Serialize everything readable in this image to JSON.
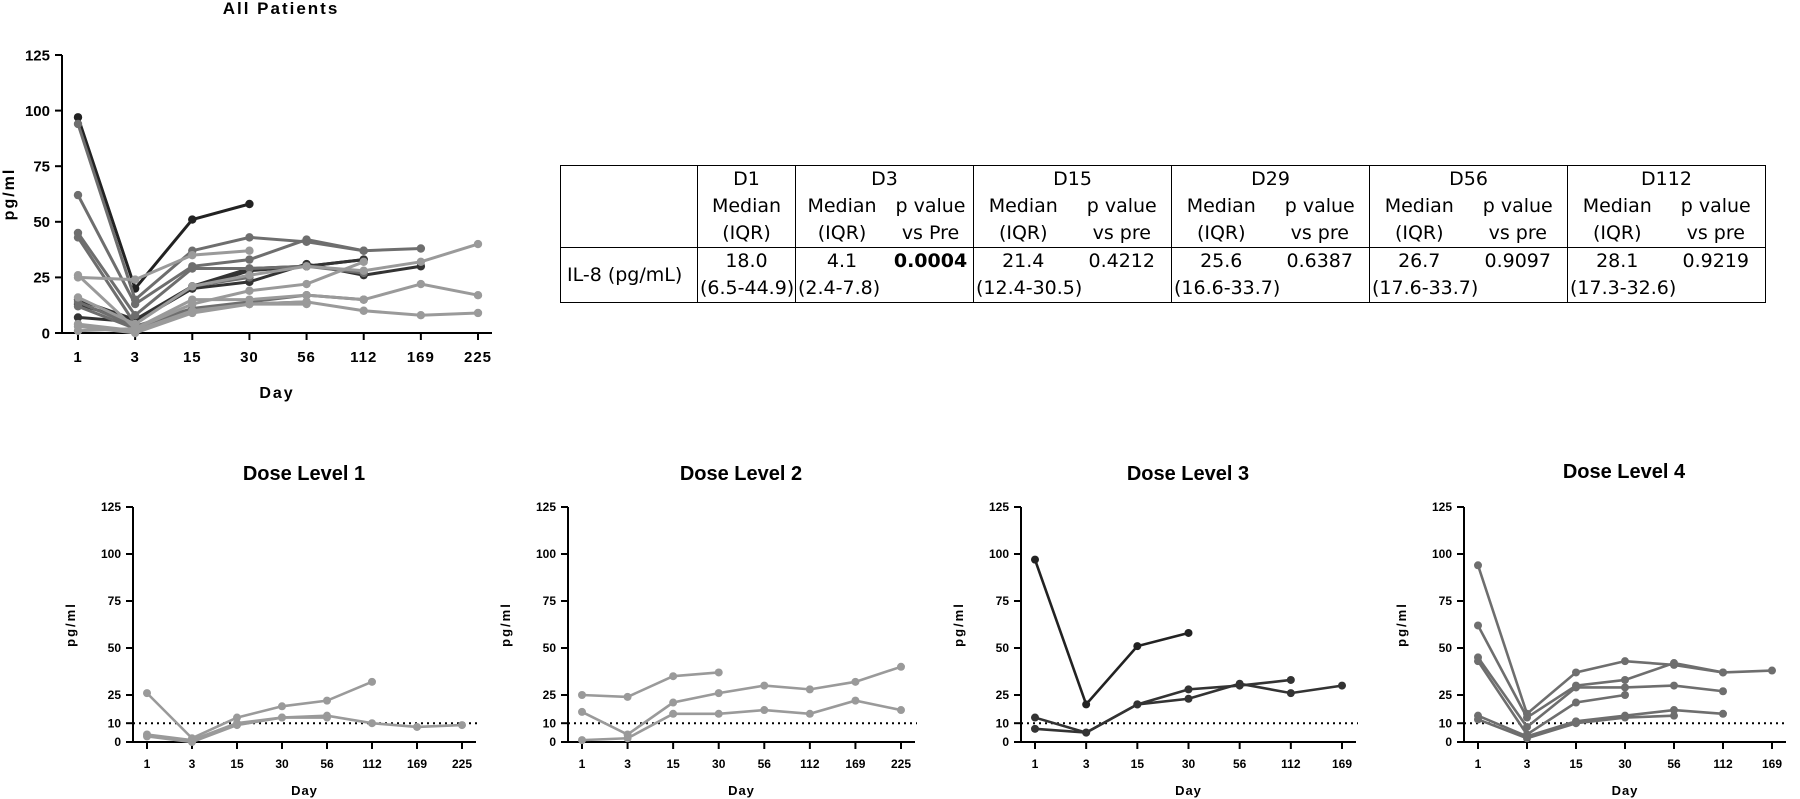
{
  "colors": {
    "light": "#9a9a9a",
    "mid": "#6e6e6e",
    "dark": "#333333",
    "darkest": "#222222"
  },
  "table": {
    "header_top": [
      "D1",
      "D3",
      "D15",
      "D29",
      "D56",
      "D112"
    ],
    "median_label": "Median",
    "iqr_label": "(IQR)",
    "pvalue_label": "p value",
    "vs_Pre": "vs Pre",
    "vs_pre": "vs pre",
    "row_label": "IL-8 (pg/mL)",
    "d1": {
      "median": "18.0",
      "iqr": "(6.5-44.9)"
    },
    "d3": {
      "median": "4.1",
      "iqr": "(2.4-7.8)",
      "p": "0.0004"
    },
    "d15": {
      "median": "21.4",
      "iqr": "(12.4-30.5)",
      "p": "0.4212"
    },
    "d29": {
      "median": "25.6",
      "iqr": "(16.6-33.7)",
      "p": "0.6387"
    },
    "d56": {
      "median": "26.7",
      "iqr": "(17.6-33.7)",
      "p": "0.9097"
    },
    "d112": {
      "median": "28.1",
      "iqr": "(17.3-32.6)",
      "p": "0.9219"
    }
  },
  "chart_data": [
    {
      "type": "line",
      "title": "All Patients",
      "xlabel": "Day",
      "ylabel": "pg/ml",
      "x": [
        "1",
        "3",
        "15",
        "30",
        "56",
        "112",
        "169",
        "225"
      ],
      "ylim": [
        0,
        125
      ],
      "yticks": [
        "0",
        "25",
        "50",
        "75",
        "100",
        "125"
      ],
      "reference_line": null,
      "series": [
        {
          "color": "darkest",
          "values": [
            97,
            20,
            51,
            58,
            null,
            null,
            null,
            null
          ]
        },
        {
          "color": "dark",
          "values": [
            13,
            5,
            20,
            23,
            31,
            26,
            30,
            null
          ]
        },
        {
          "color": "dark",
          "values": [
            7,
            5,
            20,
            28,
            30,
            33,
            null,
            null
          ]
        },
        {
          "color": "dark",
          "values": [
            15,
            6,
            21,
            29,
            30,
            33,
            null,
            null
          ]
        },
        {
          "color": "mid",
          "values": [
            94,
            15,
            37,
            43,
            41,
            37,
            38,
            null
          ]
        },
        {
          "color": "mid",
          "values": [
            62,
            13,
            30,
            33,
            42,
            37,
            null,
            null
          ]
        },
        {
          "color": "mid",
          "values": [
            45,
            8,
            29,
            29,
            30,
            27,
            null,
            null
          ]
        },
        {
          "color": "mid",
          "values": [
            43,
            4,
            21,
            25,
            null,
            null,
            null,
            null
          ]
        },
        {
          "color": "mid",
          "values": [
            14,
            3,
            11,
            14,
            17,
            15,
            null,
            null
          ]
        },
        {
          "color": "mid",
          "values": [
            12,
            2,
            10,
            13,
            14,
            null,
            null,
            null
          ]
        },
        {
          "color": "light",
          "values": [
            25,
            24,
            35,
            37,
            null,
            null,
            null,
            null
          ]
        },
        {
          "color": "light",
          "values": [
            16,
            4,
            21,
            26,
            30,
            28,
            32,
            40
          ]
        },
        {
          "color": "light",
          "values": [
            1,
            2,
            15,
            15,
            17,
            15,
            22,
            17
          ]
        },
        {
          "color": "light",
          "values": [
            26,
            2,
            13,
            19,
            22,
            32,
            null,
            null
          ]
        },
        {
          "color": "light",
          "values": [
            4,
            1,
            10,
            13,
            14,
            10,
            8,
            9
          ]
        },
        {
          "color": "light",
          "values": [
            3,
            0,
            9,
            13,
            13,
            null,
            null,
            null
          ]
        }
      ]
    },
    {
      "type": "line",
      "title": "Dose Level 1",
      "xlabel": "Day",
      "ylabel": "pg/ml",
      "x": [
        "1",
        "3",
        "15",
        "30",
        "56",
        "112",
        "169",
        "225"
      ],
      "ylim": [
        0,
        125
      ],
      "yticks": [
        "0",
        "10",
        "25",
        "50",
        "75",
        "100",
        "125"
      ],
      "reference_line": 10,
      "series": [
        {
          "color": "light",
          "values": [
            26,
            2,
            13,
            19,
            22,
            32,
            null,
            null
          ]
        },
        {
          "color": "light",
          "values": [
            4,
            1,
            10,
            13,
            14,
            10,
            8,
            9
          ]
        },
        {
          "color": "light",
          "values": [
            3,
            0,
            9,
            13,
            13,
            null,
            null,
            null
          ]
        }
      ]
    },
    {
      "type": "line",
      "title": "Dose Level 2",
      "xlabel": "Day",
      "ylabel": "pg/ml",
      "x": [
        "1",
        "3",
        "15",
        "30",
        "56",
        "112",
        "169",
        "225"
      ],
      "ylim": [
        0,
        125
      ],
      "yticks": [
        "0",
        "10",
        "25",
        "50",
        "75",
        "100",
        "125"
      ],
      "reference_line": 10,
      "series": [
        {
          "color": "light",
          "values": [
            25,
            24,
            35,
            37,
            null,
            null,
            null,
            null
          ]
        },
        {
          "color": "light",
          "values": [
            16,
            4,
            21,
            26,
            30,
            28,
            32,
            40
          ]
        },
        {
          "color": "light",
          "values": [
            1,
            2,
            15,
            15,
            17,
            15,
            22,
            17
          ]
        }
      ]
    },
    {
      "type": "line",
      "title": "Dose Level 3",
      "xlabel": "Day",
      "ylabel": "pg/ml",
      "x": [
        "1",
        "3",
        "15",
        "30",
        "56",
        "112",
        "169"
      ],
      "ylim": [
        0,
        125
      ],
      "yticks": [
        "0",
        "10",
        "25",
        "50",
        "75",
        "100",
        "125"
      ],
      "reference_line": 10,
      "series": [
        {
          "color": "darkest",
          "values": [
            97,
            20,
            51,
            58,
            null,
            null,
            null
          ]
        },
        {
          "color": "dark",
          "values": [
            13,
            5,
            20,
            23,
            31,
            26,
            30
          ]
        },
        {
          "color": "dark",
          "values": [
            7,
            5,
            20,
            28,
            30,
            33,
            null
          ]
        }
      ]
    },
    {
      "type": "line",
      "title": "Dose Level 4",
      "xlabel": "Day",
      "ylabel": "pg/ml",
      "x": [
        "1",
        "3",
        "15",
        "30",
        "56",
        "112",
        "169"
      ],
      "ylim": [
        0,
        125
      ],
      "yticks": [
        "0",
        "10",
        "25",
        "50",
        "75",
        "100",
        "125"
      ],
      "reference_line": 10,
      "series": [
        {
          "color": "mid",
          "values": [
            94,
            15,
            37,
            43,
            41,
            37,
            38
          ]
        },
        {
          "color": "mid",
          "values": [
            62,
            13,
            30,
            33,
            42,
            37,
            null
          ]
        },
        {
          "color": "mid",
          "values": [
            45,
            8,
            29,
            29,
            30,
            27,
            null
          ]
        },
        {
          "color": "mid",
          "values": [
            43,
            4,
            21,
            25,
            null,
            null,
            null
          ]
        },
        {
          "color": "mid",
          "values": [
            14,
            3,
            11,
            14,
            17,
            15,
            null
          ]
        },
        {
          "color": "mid",
          "values": [
            12,
            2,
            10,
            13,
            14,
            null,
            null
          ]
        }
      ]
    }
  ]
}
